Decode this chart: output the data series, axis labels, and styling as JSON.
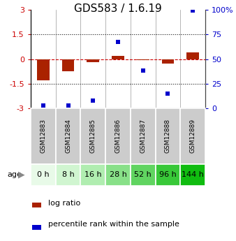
{
  "title": "GDS583 / 1.6.19",
  "samples": [
    "GSM12883",
    "GSM12884",
    "GSM12885",
    "GSM12886",
    "GSM12887",
    "GSM12888",
    "GSM12889"
  ],
  "ages": [
    "0 h",
    "8 h",
    "16 h",
    "28 h",
    "52 h",
    "96 h",
    "144 h"
  ],
  "log_ratio": [
    -1.3,
    -0.75,
    -0.2,
    0.18,
    -0.05,
    -0.28,
    0.42
  ],
  "percentile_rank": [
    3,
    3,
    8,
    67,
    38,
    15,
    99
  ],
  "ylim_left": [
    -3,
    3
  ],
  "ylim_right": [
    0,
    100
  ],
  "yticks_left": [
    -3,
    -1.5,
    0,
    1.5,
    3
  ],
  "yticks_right": [
    0,
    25,
    50,
    75,
    100
  ],
  "ytick_labels_right": [
    "0",
    "25",
    "50",
    "75",
    "100%"
  ],
  "bar_color": "#aa2200",
  "dot_color": "#0000cc",
  "zero_line_color": "#cc0000",
  "dotted_line_color": "#111111",
  "gsm_bg_color": "#cccccc",
  "age_colors": [
    "#e8fae8",
    "#d0f5d0",
    "#b0edb0",
    "#88e088",
    "#60d460",
    "#38c838",
    "#10bc10"
  ],
  "title_fontsize": 11,
  "tick_fontsize": 8,
  "sample_fontsize": 6.5,
  "age_fontsize": 8,
  "legend_fontsize": 8
}
